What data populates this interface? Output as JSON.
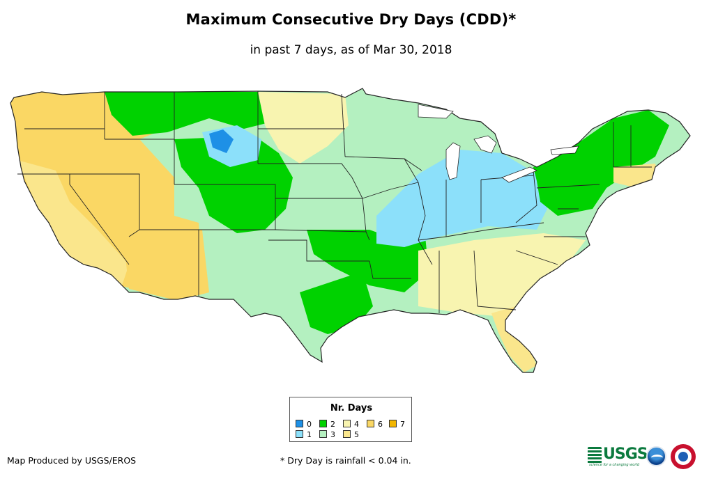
{
  "title": "Maximum Consecutive Dry Days (CDD)*",
  "subtitle": "in past 7 days, as of Mar 30, 2018",
  "map": {
    "region": "Contiguous United States",
    "palette": {
      "0": "#1e90e6",
      "1": "#8ce0fa",
      "2": "#00d200",
      "3": "#b4f0c0",
      "4": "#f8f4b0",
      "5": "#fae68c",
      "6": "#fad764",
      "7": "#f2b600"
    },
    "background_class": 3,
    "zones": [
      {
        "area": "Pacific coast and Great Basin",
        "days": 6
      },
      {
        "area": "California coast",
        "days": 5
      },
      {
        "area": "Desert Southwest",
        "days": 6
      },
      {
        "area": "Northern Rockies",
        "days": 2
      },
      {
        "area": "Wyoming / Colorado",
        "days": 2
      },
      {
        "area": "Central Wyoming",
        "days": 1
      },
      {
        "area": "Central Wyoming core",
        "days": 0
      },
      {
        "area": "High Plains",
        "days": 4
      },
      {
        "area": "Southern Plains",
        "days": 2
      },
      {
        "area": "Texas interior",
        "days": 2
      },
      {
        "area": "Ohio Valley / Midwest",
        "days": 1
      },
      {
        "area": "Northeast",
        "days": 2
      },
      {
        "area": "Southeast",
        "days": 4
      },
      {
        "area": "Florida peninsula",
        "days": 5
      },
      {
        "area": "New England coast",
        "days": 5
      }
    ]
  },
  "legend": {
    "title": "Nr. Days",
    "items": [
      {
        "label": "0",
        "color": "#1e90e6"
      },
      {
        "label": "2",
        "color": "#00d200"
      },
      {
        "label": "4",
        "color": "#f8f4b0"
      },
      {
        "label": "6",
        "color": "#fad764"
      },
      {
        "label": "7",
        "color": "#f2b600"
      },
      {
        "label": "1",
        "color": "#8ce0fa"
      },
      {
        "label": "3",
        "color": "#b4f0c0"
      },
      {
        "label": "5",
        "color": "#fae68c"
      }
    ]
  },
  "footer": {
    "producer": "Map Produced by USGS/EROS",
    "note": "* Dry Day is rainfall < 0.04 in."
  },
  "logos": {
    "usgs": "USGS",
    "usgs_tagline": "science for a changing world"
  }
}
